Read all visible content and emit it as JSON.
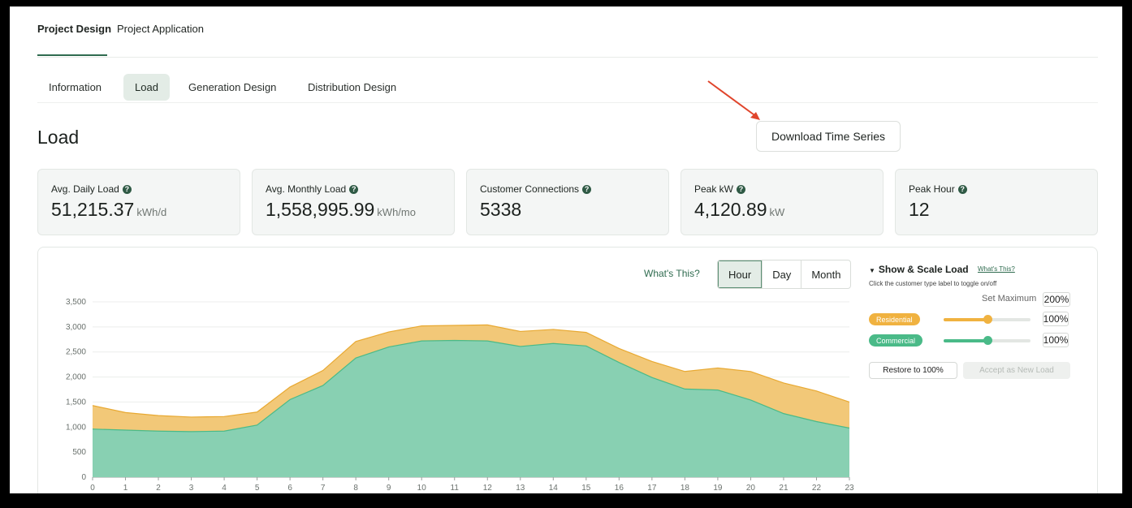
{
  "top_tabs": [
    {
      "label": "Project Design",
      "active": true
    },
    {
      "label": "Project Application",
      "active": false
    }
  ],
  "sub_tabs": [
    {
      "label": "Information",
      "active": false
    },
    {
      "label": "Load",
      "active": true
    },
    {
      "label": "Generation Design",
      "active": false
    },
    {
      "label": "Distribution Design",
      "active": false
    }
  ],
  "page_title": "Load",
  "download_label": "Download Time Series",
  "stats": [
    {
      "label": "Avg. Daily Load",
      "value": "51,215.37",
      "unit": "kWh/d"
    },
    {
      "label": "Avg. Monthly Load",
      "value": "1,558,995.99",
      "unit": "kWh/mo"
    },
    {
      "label": "Customer Connections",
      "value": "5338",
      "unit": ""
    },
    {
      "label": "Peak kW",
      "value": "4,120.89",
      "unit": "kW"
    },
    {
      "label": "Peak Hour",
      "value": "12",
      "unit": ""
    }
  ],
  "chart_controls": {
    "whats_this": "What's This?",
    "segments": [
      {
        "label": "Hour",
        "active": true
      },
      {
        "label": "Day",
        "active": false
      },
      {
        "label": "Month",
        "active": false
      }
    ]
  },
  "scale_panel": {
    "title": "Show & Scale Load",
    "whats_this": "What's This?",
    "hint": "Click the customer type label to toggle on/off",
    "set_max_label": "Set Maximum",
    "set_max_value": "200%",
    "series": [
      {
        "label": "Residential",
        "color": "#f0b240",
        "percent": "100%",
        "level": 0.5
      },
      {
        "label": "Commercial",
        "color": "#4aba88",
        "percent": "100%",
        "level": 0.5
      }
    ],
    "restore_label": "Restore to 100%",
    "accept_label": "Accept as New Load"
  },
  "colors": {
    "accent": "#2f6b4f",
    "arrow": "#e0452c"
  },
  "chart_data": {
    "type": "area",
    "stacked": true,
    "x": [
      0,
      1,
      2,
      3,
      4,
      5,
      6,
      7,
      8,
      9,
      10,
      11,
      12,
      13,
      14,
      15,
      16,
      17,
      18,
      19,
      20,
      21,
      22,
      23
    ],
    "ylim": [
      0,
      3500
    ],
    "yticks": [
      "0",
      "500",
      "1,000",
      "1,500",
      "2,000",
      "2,500",
      "3,000",
      "3,500"
    ],
    "grid": true,
    "series": [
      {
        "name": "Commercial",
        "color": "#88d0b2",
        "stroke": "#4aba88",
        "values": [
          960,
          940,
          920,
          910,
          920,
          1040,
          1550,
          1830,
          2380,
          2600,
          2720,
          2730,
          2720,
          2610,
          2670,
          2620,
          2290,
          1990,
          1760,
          1740,
          1540,
          1270,
          1110,
          980
        ]
      },
      {
        "name": "Residential",
        "color": "#f2c878",
        "stroke": "#e8a932",
        "values": [
          470,
          350,
          310,
          290,
          290,
          260,
          250,
          300,
          330,
          300,
          300,
          300,
          320,
          300,
          280,
          270,
          280,
          320,
          350,
          440,
          570,
          610,
          610,
          520
        ]
      }
    ]
  }
}
